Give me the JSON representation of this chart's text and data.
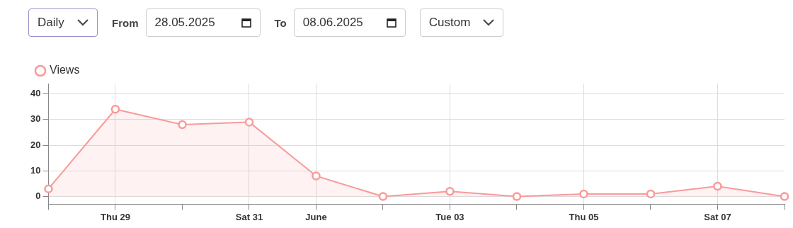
{
  "chart_data": {
    "type": "area",
    "categories": [
      null,
      "Thu 29",
      null,
      "Sat 31",
      "June",
      null,
      "Tue 03",
      null,
      "Thu 05",
      null,
      "Sat 07",
      null
    ],
    "series": [
      {
        "name": "Views",
        "color": "#f99a9a",
        "values": [
          3,
          34,
          28,
          29,
          8,
          0,
          2,
          0,
          1,
          1,
          4,
          0
        ]
      }
    ],
    "ylim": [
      -3,
      44
    ],
    "yticks": [
      0,
      10,
      20,
      30,
      40
    ],
    "grid": true,
    "legend": "top left",
    "marker": "circle",
    "line_style": "solid",
    "annotations": [
      "Daily",
      "From",
      "28.05.2025",
      "To",
      "08.06.2025",
      "Custom"
    ]
  }
}
